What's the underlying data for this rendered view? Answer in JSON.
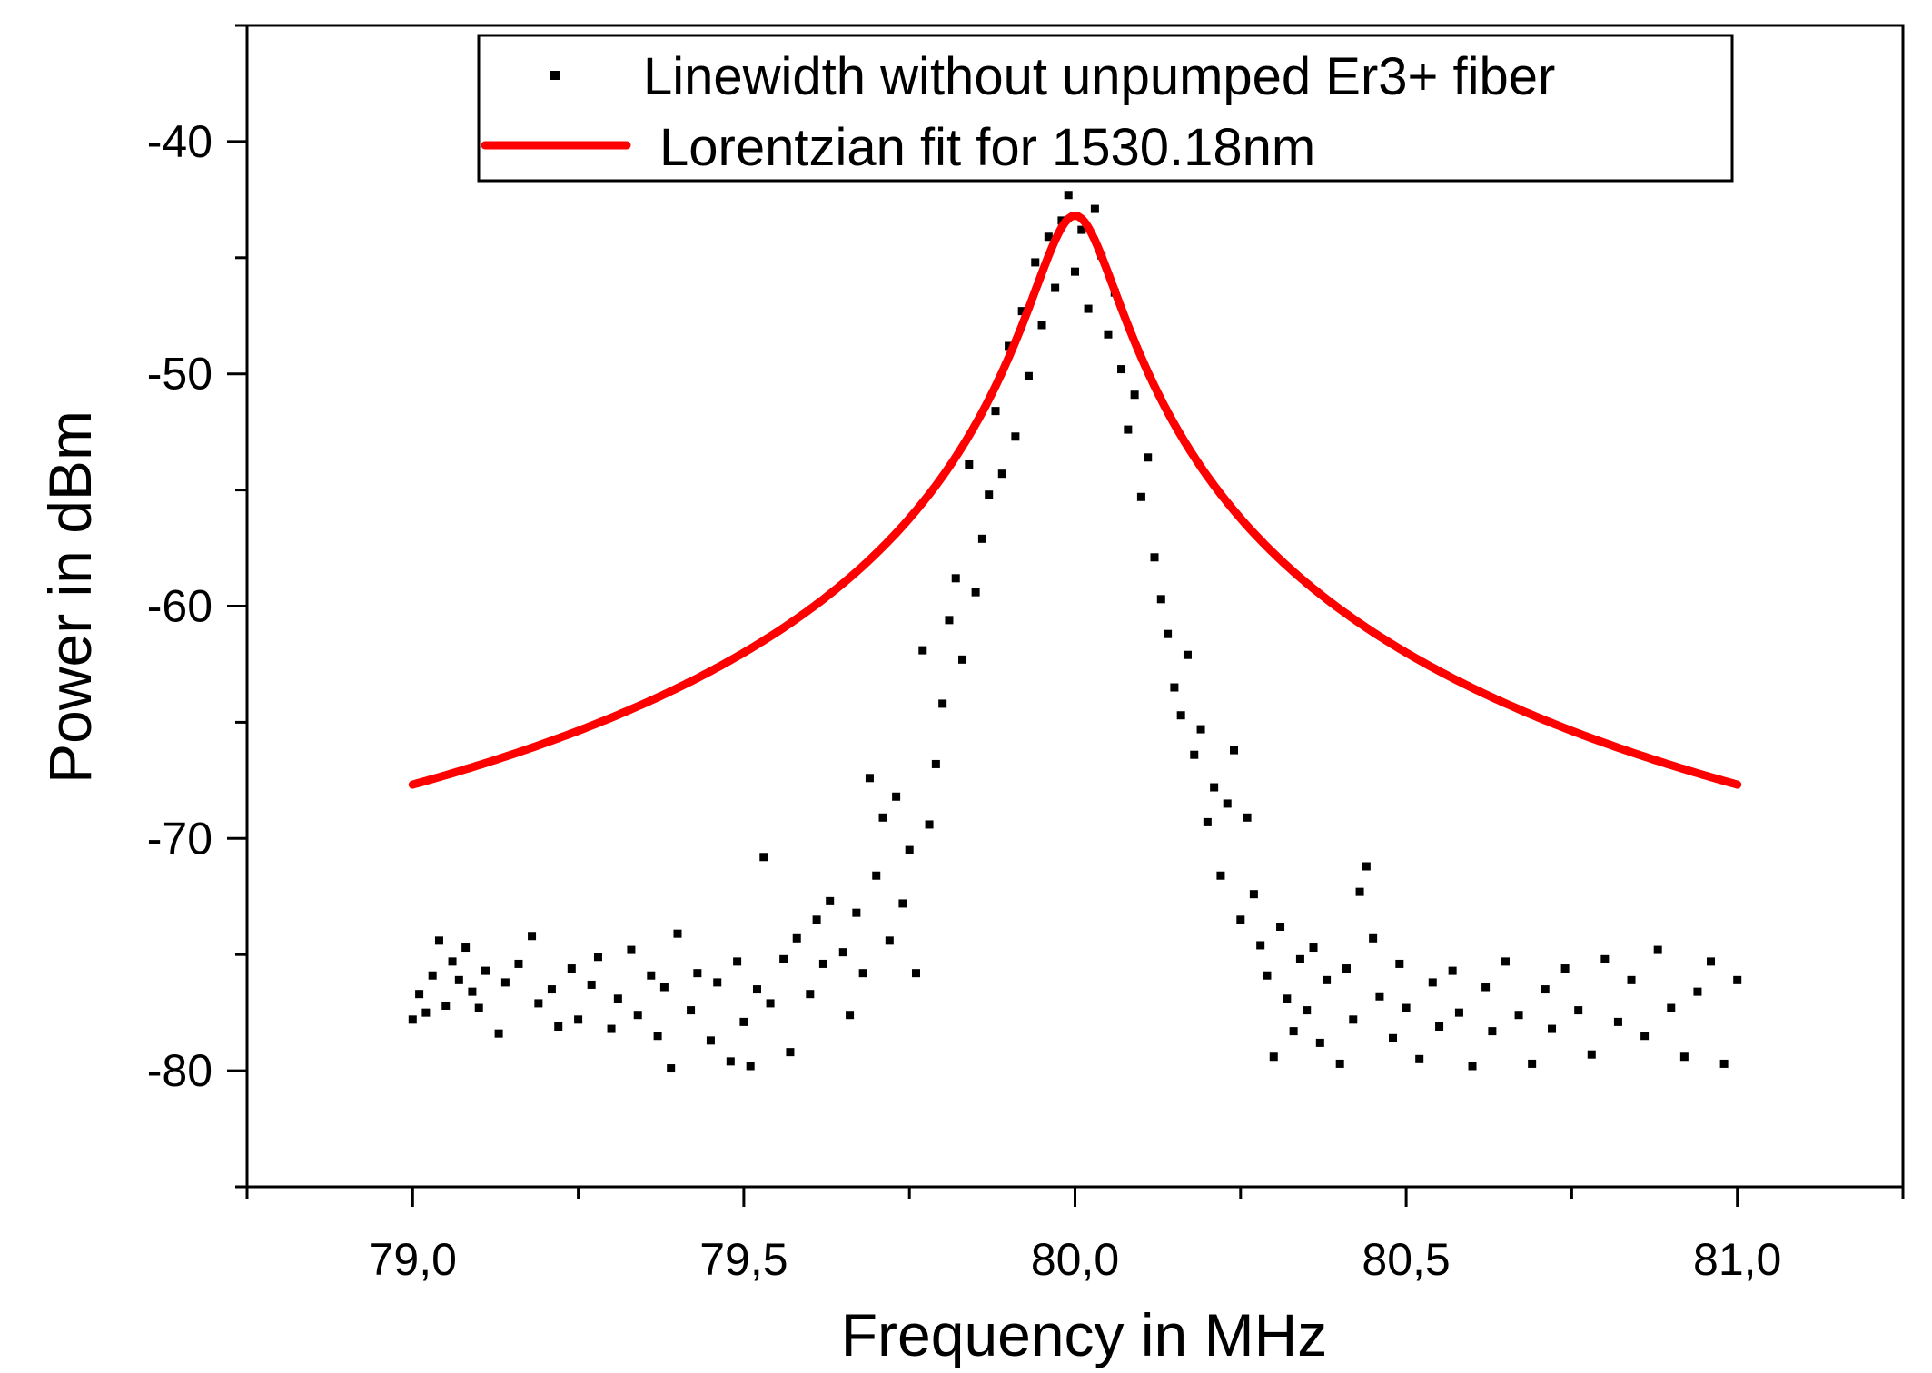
{
  "chart_data": {
    "type": "scatter",
    "xlabel": "Frequency in MHz",
    "ylabel": "Power in dBm",
    "xlim": [
      78.75,
      81.25
    ],
    "ylim": [
      -85,
      -35
    ],
    "x_ticks": [
      {
        "value": 79.0,
        "label": "79,0"
      },
      {
        "value": 79.5,
        "label": "79,5"
      },
      {
        "value": 80.0,
        "label": "80,0"
      },
      {
        "value": 80.5,
        "label": "80,5"
      },
      {
        "value": 81.0,
        "label": "81,0"
      }
    ],
    "y_ticks": [
      {
        "value": -40,
        "label": "-40"
      },
      {
        "value": -50,
        "label": "-50"
      },
      {
        "value": -60,
        "label": "-60"
      },
      {
        "value": -70,
        "label": "-70"
      },
      {
        "value": -80,
        "label": "-80"
      }
    ],
    "legend_position": "top",
    "series": [
      {
        "name": "Linewidth without unpumped Er3+ fiber",
        "kind": "scatter",
        "color": "#000000",
        "points": [
          [
            79.0,
            -77.8
          ],
          [
            79.01,
            -76.7
          ],
          [
            79.02,
            -77.5
          ],
          [
            79.03,
            -75.9
          ],
          [
            79.04,
            -74.4
          ],
          [
            79.05,
            -77.2
          ],
          [
            79.06,
            -75.3
          ],
          [
            79.07,
            -76.1
          ],
          [
            79.08,
            -74.7
          ],
          [
            79.09,
            -76.6
          ],
          [
            79.1,
            -77.3
          ],
          [
            79.11,
            -75.7
          ],
          [
            79.13,
            -78.4
          ],
          [
            79.14,
            -76.2
          ],
          [
            79.16,
            -75.4
          ],
          [
            79.18,
            -74.2
          ],
          [
            79.19,
            -77.1
          ],
          [
            79.21,
            -76.5
          ],
          [
            79.22,
            -78.1
          ],
          [
            79.24,
            -75.6
          ],
          [
            79.25,
            -77.8
          ],
          [
            79.27,
            -76.3
          ],
          [
            79.28,
            -75.1
          ],
          [
            79.3,
            -78.2
          ],
          [
            79.31,
            -76.9
          ],
          [
            79.33,
            -74.8
          ],
          [
            79.34,
            -77.6
          ],
          [
            79.36,
            -75.9
          ],
          [
            79.37,
            -78.5
          ],
          [
            79.38,
            -76.4
          ],
          [
            79.39,
            -79.9
          ],
          [
            79.4,
            -74.1
          ],
          [
            79.42,
            -77.4
          ],
          [
            79.43,
            -75.8
          ],
          [
            79.45,
            -78.7
          ],
          [
            79.46,
            -76.2
          ],
          [
            79.48,
            -79.6
          ],
          [
            79.49,
            -75.3
          ],
          [
            79.5,
            -77.9
          ],
          [
            79.51,
            -79.8
          ],
          [
            79.52,
            -76.5
          ],
          [
            79.53,
            -70.8
          ],
          [
            79.54,
            -77.1
          ],
          [
            79.56,
            -75.2
          ],
          [
            79.57,
            -79.2
          ],
          [
            79.58,
            -74.3
          ],
          [
            79.6,
            -76.7
          ],
          [
            79.61,
            -73.5
          ],
          [
            79.62,
            -75.4
          ],
          [
            79.63,
            -72.7
          ],
          [
            79.65,
            -74.9
          ],
          [
            79.66,
            -77.6
          ],
          [
            79.67,
            -73.2
          ],
          [
            79.68,
            -75.8
          ],
          [
            79.69,
            -67.4
          ],
          [
            79.7,
            -71.6
          ],
          [
            79.71,
            -69.1
          ],
          [
            79.72,
            -74.4
          ],
          [
            79.73,
            -68.2
          ],
          [
            79.74,
            -72.8
          ],
          [
            79.75,
            -70.5
          ],
          [
            79.76,
            -75.8
          ],
          [
            79.77,
            -61.9
          ],
          [
            79.78,
            -69.4
          ],
          [
            79.79,
            -66.8
          ],
          [
            79.8,
            -64.2
          ],
          [
            79.81,
            -60.6
          ],
          [
            79.82,
            -58.8
          ],
          [
            79.83,
            -62.3
          ],
          [
            79.84,
            -53.9
          ],
          [
            79.85,
            -59.4
          ],
          [
            79.86,
            -57.1
          ],
          [
            79.87,
            -55.2
          ],
          [
            79.88,
            -51.6
          ],
          [
            79.89,
            -54.3
          ],
          [
            79.9,
            -48.8
          ],
          [
            79.91,
            -52.7
          ],
          [
            79.92,
            -47.3
          ],
          [
            79.93,
            -50.1
          ],
          [
            79.94,
            -45.2
          ],
          [
            79.95,
            -47.9
          ],
          [
            79.96,
            -44.1
          ],
          [
            79.97,
            -46.3
          ],
          [
            79.98,
            -43.4
          ],
          [
            79.99,
            -42.3
          ],
          [
            80.0,
            -45.6
          ],
          [
            80.01,
            -43.8
          ],
          [
            80.02,
            -47.2
          ],
          [
            80.03,
            -42.9
          ],
          [
            80.04,
            -44.9
          ],
          [
            80.05,
            -48.3
          ],
          [
            80.06,
            -46.5
          ],
          [
            80.07,
            -49.8
          ],
          [
            80.08,
            -52.4
          ],
          [
            80.09,
            -50.9
          ],
          [
            80.1,
            -55.3
          ],
          [
            80.11,
            -53.6
          ],
          [
            80.12,
            -57.9
          ],
          [
            80.13,
            -59.7
          ],
          [
            80.14,
            -61.2
          ],
          [
            80.15,
            -63.5
          ],
          [
            80.16,
            -64.7
          ],
          [
            80.17,
            -62.1
          ],
          [
            80.18,
            -66.4
          ],
          [
            80.19,
            -65.3
          ],
          [
            80.2,
            -69.3
          ],
          [
            80.21,
            -67.8
          ],
          [
            80.22,
            -71.6
          ],
          [
            80.23,
            -68.5
          ],
          [
            80.24,
            -66.2
          ],
          [
            80.25,
            -73.5
          ],
          [
            80.26,
            -69.1
          ],
          [
            80.27,
            -72.4
          ],
          [
            80.28,
            -74.6
          ],
          [
            80.29,
            -75.9
          ],
          [
            80.3,
            -79.4
          ],
          [
            80.31,
            -73.8
          ],
          [
            80.32,
            -76.9
          ],
          [
            80.33,
            -78.3
          ],
          [
            80.34,
            -75.2
          ],
          [
            80.35,
            -77.4
          ],
          [
            80.36,
            -74.7
          ],
          [
            80.37,
            -78.8
          ],
          [
            80.38,
            -76.1
          ],
          [
            80.4,
            -79.7
          ],
          [
            80.41,
            -75.6
          ],
          [
            80.42,
            -77.8
          ],
          [
            80.43,
            -72.3
          ],
          [
            80.44,
            -71.2
          ],
          [
            80.45,
            -74.3
          ],
          [
            80.46,
            -76.8
          ],
          [
            80.48,
            -78.6
          ],
          [
            80.49,
            -75.4
          ],
          [
            80.5,
            -77.3
          ],
          [
            80.52,
            -79.5
          ],
          [
            80.54,
            -76.2
          ],
          [
            80.55,
            -78.1
          ],
          [
            80.57,
            -75.7
          ],
          [
            80.58,
            -77.5
          ],
          [
            80.6,
            -79.8
          ],
          [
            80.62,
            -76.4
          ],
          [
            80.63,
            -78.3
          ],
          [
            80.65,
            -75.3
          ],
          [
            80.67,
            -77.6
          ],
          [
            80.69,
            -79.7
          ],
          [
            80.71,
            -76.5
          ],
          [
            80.72,
            -78.2
          ],
          [
            80.74,
            -75.6
          ],
          [
            80.76,
            -77.4
          ],
          [
            80.78,
            -79.3
          ],
          [
            80.8,
            -75.2
          ],
          [
            80.82,
            -77.9
          ],
          [
            80.84,
            -76.1
          ],
          [
            80.86,
            -78.5
          ],
          [
            80.88,
            -74.8
          ],
          [
            80.9,
            -77.3
          ],
          [
            80.92,
            -79.4
          ],
          [
            80.94,
            -76.6
          ],
          [
            80.96,
            -75.3
          ],
          [
            80.98,
            -79.7
          ],
          [
            81.0,
            -76.1
          ]
        ]
      },
      {
        "name": "Lorentzian fit for 1530.18nm",
        "kind": "line",
        "color": "#ff0000",
        "fit": {
          "x0": 80.0,
          "gamma": 0.057,
          "baseline_mw": 1.5e-08,
          "peak_mw": 4.8e-05
        }
      }
    ]
  }
}
